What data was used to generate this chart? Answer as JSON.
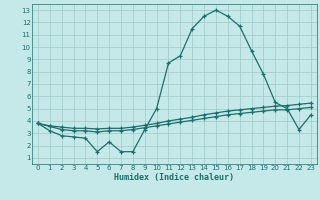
{
  "xlabel": "Humidex (Indice chaleur)",
  "bg_color": "#c5e8e8",
  "line_color": "#1a7070",
  "grid_color": "#a0c8c8",
  "xlim": [
    -0.5,
    23.5
  ],
  "ylim": [
    0.5,
    13.5
  ],
  "xticks": [
    0,
    1,
    2,
    3,
    4,
    5,
    6,
    7,
    8,
    9,
    10,
    11,
    12,
    13,
    14,
    15,
    16,
    17,
    18,
    19,
    20,
    21,
    22,
    23
  ],
  "yticks": [
    1,
    2,
    3,
    4,
    5,
    6,
    7,
    8,
    9,
    10,
    11,
    12,
    13
  ],
  "line1_x": [
    0,
    1,
    2,
    3,
    4,
    5,
    6,
    7,
    8,
    9,
    10,
    11,
    12,
    13,
    14,
    15,
    16,
    17,
    18,
    19,
    20,
    21,
    22,
    23
  ],
  "line1_y": [
    3.8,
    3.2,
    2.8,
    2.7,
    2.6,
    1.5,
    2.3,
    1.5,
    1.5,
    3.3,
    5.0,
    8.7,
    9.3,
    11.5,
    12.5,
    13.0,
    12.5,
    11.7,
    9.7,
    7.8,
    5.5,
    5.0,
    3.3,
    4.5
  ],
  "line2_x": [
    0,
    1,
    2,
    3,
    4,
    5,
    6,
    7,
    8,
    9,
    10,
    11,
    12,
    13,
    14,
    15,
    16,
    17,
    18,
    19,
    20,
    21,
    22,
    23
  ],
  "line2_y": [
    3.8,
    3.6,
    3.5,
    3.4,
    3.4,
    3.35,
    3.4,
    3.4,
    3.5,
    3.65,
    3.8,
    4.0,
    4.15,
    4.3,
    4.5,
    4.65,
    4.8,
    4.9,
    5.0,
    5.1,
    5.2,
    5.25,
    5.35,
    5.45
  ],
  "line3_x": [
    0,
    1,
    2,
    3,
    4,
    5,
    6,
    7,
    8,
    9,
    10,
    11,
    12,
    13,
    14,
    15,
    16,
    17,
    18,
    19,
    20,
    21,
    22,
    23
  ],
  "line3_y": [
    3.8,
    3.55,
    3.3,
    3.2,
    3.2,
    3.1,
    3.2,
    3.2,
    3.3,
    3.45,
    3.6,
    3.75,
    3.9,
    4.05,
    4.2,
    4.35,
    4.5,
    4.6,
    4.7,
    4.8,
    4.9,
    4.9,
    5.0,
    5.1
  ]
}
